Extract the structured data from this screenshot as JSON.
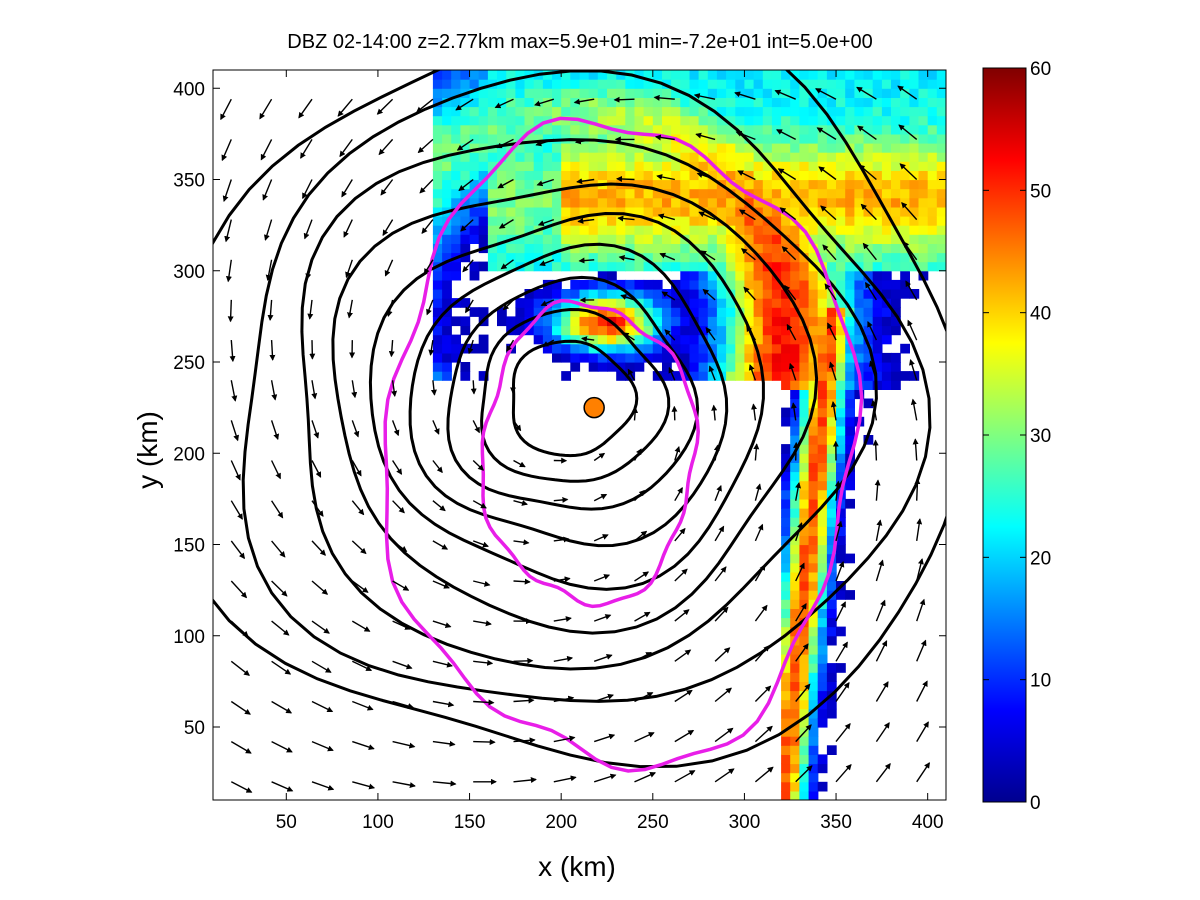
{
  "chart_data": {
    "type": "heatmap",
    "title": "DBZ 02-14:00 z=2.77km max=5.9e+01 min=-7.2e+01 int=5.0e+00",
    "xlabel": "x (km)",
    "ylabel": "y (km)",
    "xlim": [
      10,
      410
    ],
    "ylim": [
      10,
      410
    ],
    "xticks": [
      50,
      100,
      150,
      200,
      250,
      300,
      350,
      400
    ],
    "yticks": [
      50,
      100,
      150,
      200,
      250,
      300,
      350,
      400
    ],
    "colorbar": {
      "min": 0,
      "max": 60,
      "ticks": [
        0,
        10,
        20,
        30,
        40,
        50,
        60
      ],
      "colormap": "jet"
    },
    "vortex_center": [
      205,
      230
    ],
    "eye_storm": {
      "x": 218,
      "y": 225
    },
    "pressure_contour_radii_km": [
      32,
      48,
      64,
      82,
      102,
      124,
      148,
      176,
      206
    ],
    "magenta_contours": [
      {
        "rx": 128,
        "ry": 175,
        "cx": 232,
        "cy": 205
      },
      {
        "rx": 58,
        "ry": 82,
        "cx": 215,
        "cy": 200
      }
    ],
    "reflectivity_regions": [
      {
        "name": "northern-rainband",
        "peak_dbz": 45,
        "x": [
          140,
          410
        ],
        "y": [
          240,
          410
        ]
      },
      {
        "name": "eyewall-core",
        "peak_dbz": 50,
        "x": [
          180,
          270
        ],
        "y": [
          250,
          300
        ]
      },
      {
        "name": "eastern-rainband",
        "peak_dbz": 55,
        "x": [
          310,
          370
        ],
        "y": [
          15,
          270
        ]
      }
    ],
    "colors": {
      "magenta": "#e81ee8",
      "contour": "#000000",
      "axes": "#000000"
    }
  }
}
